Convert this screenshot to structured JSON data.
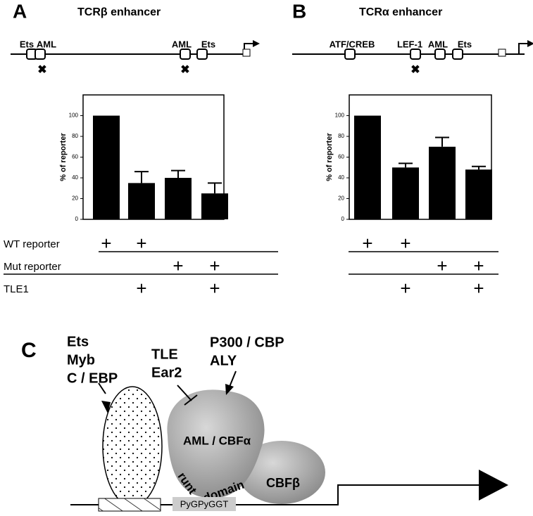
{
  "chart_data": [
    {
      "type": "bar",
      "panel": "A",
      "title": "TCRβ enhancer",
      "ylabel": "% of reporter",
      "sites": [
        "Ets",
        "AML",
        "AML",
        "Ets"
      ],
      "categories": [
        null,
        null,
        null,
        null
      ],
      "values": [
        100,
        35,
        40,
        25
      ],
      "errors": [
        null,
        11,
        7,
        10
      ],
      "color": "#000000",
      "ylim": [
        0,
        120
      ],
      "yticks": [
        0,
        20,
        40,
        60,
        80,
        100
      ]
    },
    {
      "type": "bar",
      "panel": "B",
      "title": "TCRα enhancer",
      "ylabel": "% of reporter",
      "sites": [
        "ATF/CREB",
        "LEF-1",
        "AML",
        "Ets"
      ],
      "categories": [
        null,
        null,
        null,
        null
      ],
      "values": [
        100,
        50,
        70,
        48
      ],
      "errors": [
        null,
        4,
        9,
        3
      ],
      "color": "#000000",
      "ylim": [
        0,
        120
      ],
      "yticks": [
        0,
        20,
        40,
        60,
        80,
        100
      ]
    }
  ],
  "conditions": {
    "rows": [
      {
        "label": "WT reporter",
        "marks": [
          "+",
          "+",
          null,
          null
        ]
      },
      {
        "label": "Mut reporter",
        "marks": [
          null,
          null,
          "+",
          "+"
        ]
      },
      {
        "label": "TLE1",
        "marks": [
          null,
          "+",
          null,
          "+"
        ]
      }
    ]
  },
  "diagram": {
    "panel": "C",
    "left_factors": [
      "Ets",
      "Myb",
      "C / EBP"
    ],
    "repressors": [
      "TLE",
      "Ear2"
    ],
    "activators": [
      "P300 / CBP",
      "ALY"
    ],
    "aml": "AML / CBFα",
    "runt": "runt",
    "domain": "domain",
    "cbfb": "CBFβ",
    "site": "PyGPyGGT"
  }
}
